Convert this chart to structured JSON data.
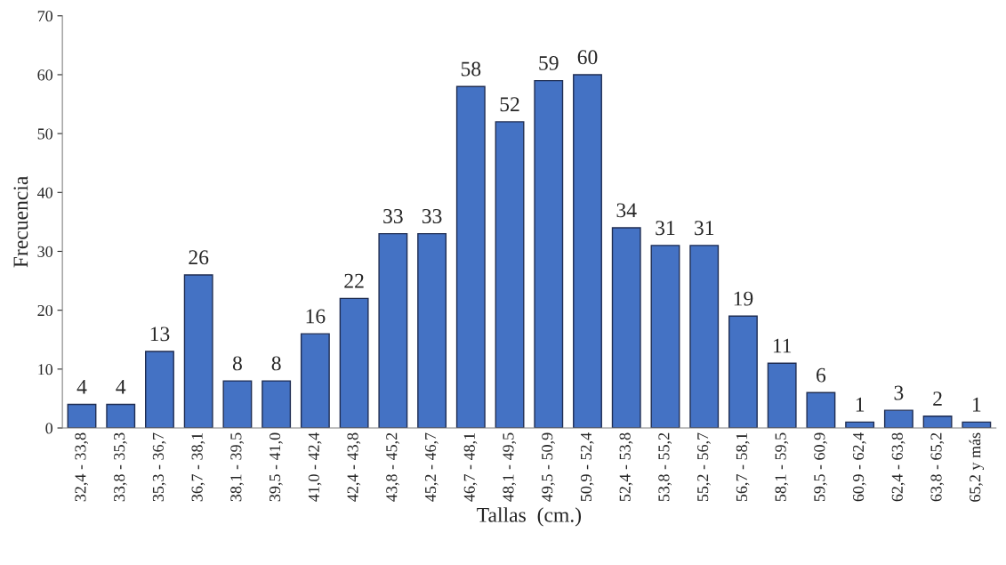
{
  "chart_data": {
    "type": "bar",
    "xlabel": "Tallas  (cm.)",
    "ylabel": "Frecuencia",
    "categories": [
      "32,4 - 33,8",
      "33,8 - 35,3",
      "35,3 - 36,7",
      "36,7 - 38,1",
      "38,1 - 39,5",
      "39,5 - 41,0",
      "41,0 - 42,4",
      "42,4 - 43,8",
      "43,8 - 45,2",
      "45,2 - 46,7",
      "46,7 - 48,1",
      "48,1 - 49,5",
      "49,5 - 50,9",
      "50,9 - 52,4",
      "52,4 - 53,8",
      "53,8 - 55,2",
      "55,2 - 56,7",
      "56,7 - 58,1",
      "58,1 - 59,5",
      "59,5 - 60,9",
      "60,9 - 62,4",
      "62,4 - 63,8",
      "63,8 - 65,2",
      "65,2 y más"
    ],
    "values": [
      4,
      4,
      13,
      26,
      8,
      8,
      16,
      22,
      33,
      33,
      58,
      52,
      59,
      60,
      34,
      31,
      31,
      19,
      11,
      6,
      1,
      3,
      2,
      1
    ],
    "color": "#4472c4",
    "data_labels": true,
    "grid": false,
    "legend": false,
    "ylim": [
      0,
      70
    ],
    "yticks": [
      0,
      10,
      20,
      30,
      40,
      50,
      60,
      70
    ]
  }
}
